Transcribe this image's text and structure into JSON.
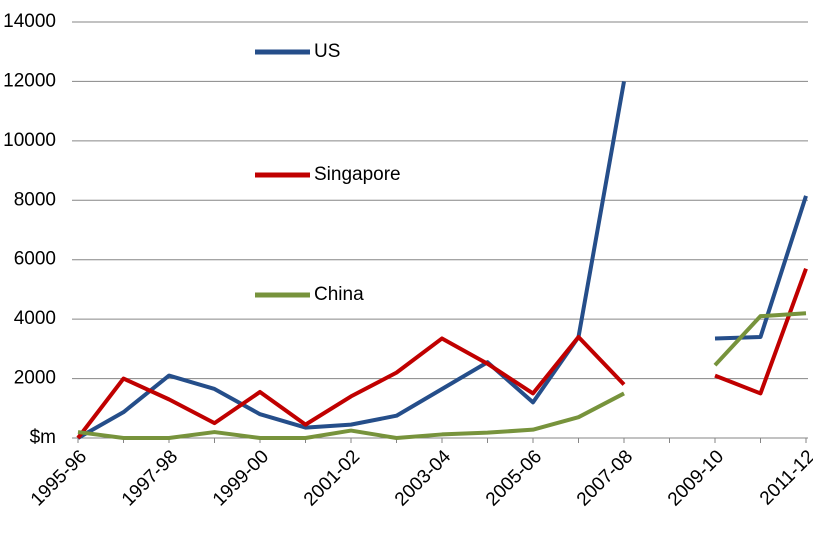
{
  "chart_data": {
    "type": "line",
    "categories": [
      "1995-96",
      null,
      "1997-98",
      null,
      "1999-00",
      null,
      "2001-02",
      null,
      "2003-04",
      null,
      "2005-06",
      null,
      "2007-08",
      null,
      "2009-10",
      null,
      "2011-12"
    ],
    "series": [
      {
        "name": "US",
        "color": "#254e8a",
        "values": [
          0,
          870,
          2100,
          1650,
          800,
          350,
          450,
          750,
          1650,
          2550,
          1200,
          3400,
          12000,
          null,
          3350,
          3400,
          8150
        ]
      },
      {
        "name": "Singapore",
        "color": "#c00000",
        "values": [
          0,
          2000,
          1300,
          500,
          1550,
          450,
          1400,
          2200,
          3350,
          2500,
          1500,
          3400,
          1800,
          null,
          2100,
          1500,
          5700
        ]
      },
      {
        "name": "China",
        "color": "#77933c",
        "values": [
          200,
          0,
          0,
          200,
          0,
          0,
          250,
          0,
          120,
          180,
          280,
          700,
          1500,
          null,
          2450,
          4100,
          4200
        ]
      }
    ],
    "ylim": [
      0,
      14000
    ],
    "yticks": [
      {
        "value": 0,
        "label": "$m"
      },
      2000,
      4000,
      6000,
      8000,
      10000,
      12000,
      14000
    ],
    "grid": true
  }
}
